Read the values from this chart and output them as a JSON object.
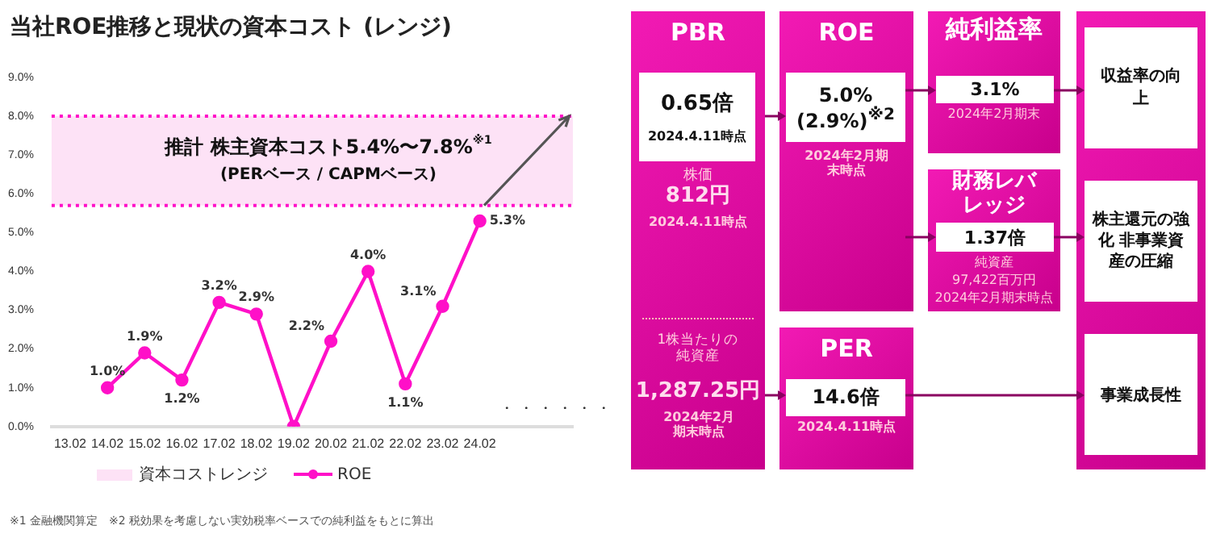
{
  "chart_data": [
    {
      "type": "line",
      "title": "当社ROE推移と現状の資本コスト (レンジ)",
      "categories": [
        "13.02",
        "14.02",
        "15.02",
        "16.02",
        "17.02",
        "18.02",
        "19.02",
        "20.02",
        "21.02",
        "22.02",
        "23.02",
        "24.02",
        null,
        null
      ],
      "series": [
        {
          "name": "ROE",
          "color": "#ff10c8",
          "values": [
            null,
            1.0,
            1.9,
            1.2,
            3.2,
            2.9,
            0,
            2.2,
            4.0,
            1.1,
            3.1,
            5.3,
            null,
            null
          ],
          "value_labels": [
            null,
            "1.0%",
            "1.9%",
            "1.2%",
            "3.2%",
            "2.9%",
            null,
            "2.2%",
            "4.0%",
            "1.1%",
            "3.1%",
            "5.3%",
            null,
            null
          ]
        }
      ],
      "ylim": [
        0,
        9
      ],
      "yticks": [
        {
          "value": 0,
          "label": "0.0%"
        },
        {
          "value": 1,
          "label": "1.0%"
        },
        {
          "value": 2,
          "label": "2.0%"
        },
        {
          "value": 3,
          "label": "3.0%"
        },
        {
          "value": 4,
          "label": "4.0%"
        },
        {
          "value": 5,
          "label": "5.0%"
        },
        {
          "value": 6,
          "label": "6.0%"
        },
        {
          "value": 7,
          "label": "7.0%"
        },
        {
          "value": 8,
          "label": "8.0%"
        },
        {
          "value": 9,
          "label": "9.0%"
        }
      ],
      "bands": [
        {
          "axis": "y",
          "from": 5.7,
          "to": 8.0,
          "label": "資本コストレンジ",
          "color": "#fde2f6"
        }
      ],
      "ref_lines": [
        {
          "axis": "y",
          "value": 8.0,
          "color": "#ff10c8",
          "line_style": "dotted"
        },
        {
          "axis": "y",
          "value": 5.7,
          "color": "#ff10c8",
          "line_style": "dotted"
        }
      ],
      "annotations": [
        "推計 株主資本コスト5.4%〜7.8%$^{※1}$",
        "(PERベース / CAPMベース)",
        "※1 金融機関算定　※2 税効果を考慮しない実効税率ベースでの純利益をもとに算出",
        "・・・・・・"
      ],
      "marker": "circle",
      "legend": "bottom",
      "grid": false
    },
    {
      "type": "other",
      "annotations": [
        "PBR",
        "0.65倍",
        "2024.4.11時点",
        "株価",
        "812円",
        "2024.4.11時点",
        "1株当たりの純資産",
        "1,287.25円",
        "2024年2月期末時点",
        "ROE",
        "5.0%",
        "(2.9%)$^{※2}$",
        "2024年2月期末時点",
        "PER",
        "14.6倍",
        "2024.4.11時点",
        "純利益率",
        "3.1%",
        "2024年2月期末",
        "財務レバレッジ",
        "1.37倍",
        "純資産",
        "97,422百万円",
        "2024年2月期末時点",
        "収益率の向上",
        "株主還元の強化 非事業資産の圧縮",
        "事業成長性"
      ]
    }
  ]
}
